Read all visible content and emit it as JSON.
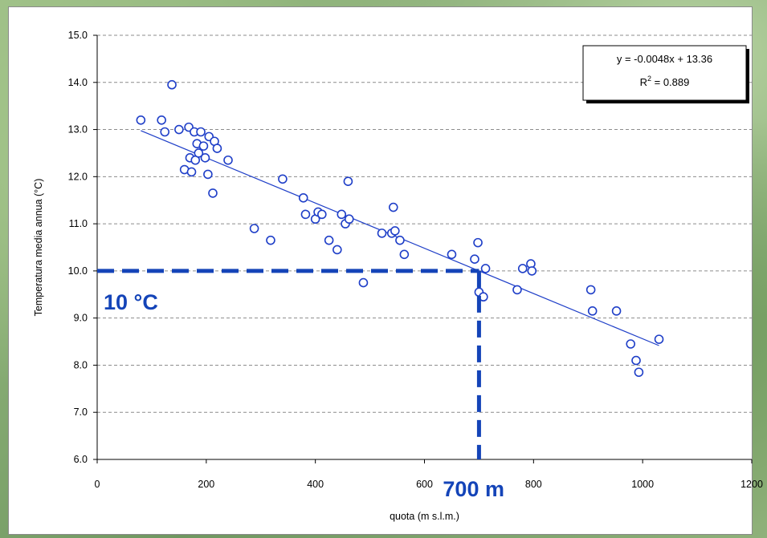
{
  "chart_data": {
    "type": "scatter",
    "xlabel": "quota (m s.l.m.)",
    "ylabel": "Temperatura media annua (°C)",
    "xlim": [
      0,
      1200
    ],
    "ylim": [
      6.0,
      15.0
    ],
    "x_ticks": [
      "0",
      "200",
      "400",
      "600",
      "800",
      "1000",
      "1200"
    ],
    "y_ticks": [
      "6.0",
      "7.0",
      "8.0",
      "9.0",
      "10.0",
      "11.0",
      "12.0",
      "13.0",
      "14.0",
      "15.0"
    ],
    "grid": "horizontal-dashed",
    "points": [
      [
        80,
        13.2
      ],
      [
        118,
        13.2
      ],
      [
        124,
        12.95
      ],
      [
        137,
        13.95
      ],
      [
        150,
        13.0
      ],
      [
        160,
        12.15
      ],
      [
        168,
        13.05
      ],
      [
        170,
        12.4
      ],
      [
        173,
        12.1
      ],
      [
        178,
        12.95
      ],
      [
        180,
        12.35
      ],
      [
        183,
        12.7
      ],
      [
        186,
        12.5
      ],
      [
        190,
        12.95
      ],
      [
        195,
        12.65
      ],
      [
        198,
        12.4
      ],
      [
        203,
        12.05
      ],
      [
        205,
        12.85
      ],
      [
        212,
        11.65
      ],
      [
        215,
        12.75
      ],
      [
        220,
        12.6
      ],
      [
        240,
        12.35
      ],
      [
        288,
        10.9
      ],
      [
        318,
        10.65
      ],
      [
        340,
        11.95
      ],
      [
        378,
        11.55
      ],
      [
        382,
        11.2
      ],
      [
        400,
        11.1
      ],
      [
        405,
        11.25
      ],
      [
        412,
        11.2
      ],
      [
        425,
        10.65
      ],
      [
        440,
        10.45
      ],
      [
        448,
        11.2
      ],
      [
        455,
        11.0
      ],
      [
        460,
        11.9
      ],
      [
        462,
        11.1
      ],
      [
        488,
        9.75
      ],
      [
        522,
        10.8
      ],
      [
        540,
        10.8
      ],
      [
        543,
        11.35
      ],
      [
        546,
        10.85
      ],
      [
        555,
        10.65
      ],
      [
        563,
        10.35
      ],
      [
        650,
        10.35
      ],
      [
        692,
        10.25
      ],
      [
        698,
        10.6
      ],
      [
        700,
        9.55
      ],
      [
        708,
        9.45
      ],
      [
        712,
        10.05
      ],
      [
        770,
        9.6
      ],
      [
        780,
        10.05
      ],
      [
        795,
        10.15
      ],
      [
        797,
        10.0
      ],
      [
        905,
        9.6
      ],
      [
        908,
        9.15
      ],
      [
        952,
        9.15
      ],
      [
        978,
        8.45
      ],
      [
        988,
        8.1
      ],
      [
        993,
        7.85
      ],
      [
        1030,
        8.55
      ]
    ],
    "trendline": {
      "slope": -0.0048,
      "intercept": 13.36,
      "x_range": [
        80,
        1030
      ]
    },
    "equation_box": {
      "line1": "y = -0.0048x + 13.36",
      "r2_prefix": "R",
      "r2_sup": "2",
      "r2_value": " = 0.889"
    },
    "reference": {
      "x": 700,
      "y": 10.0,
      "x_label": "700 m",
      "y_label": "10 °C",
      "color": "#1444b8"
    },
    "marker_color": "#1f3fc8",
    "line_color": "#1f3fc8"
  }
}
